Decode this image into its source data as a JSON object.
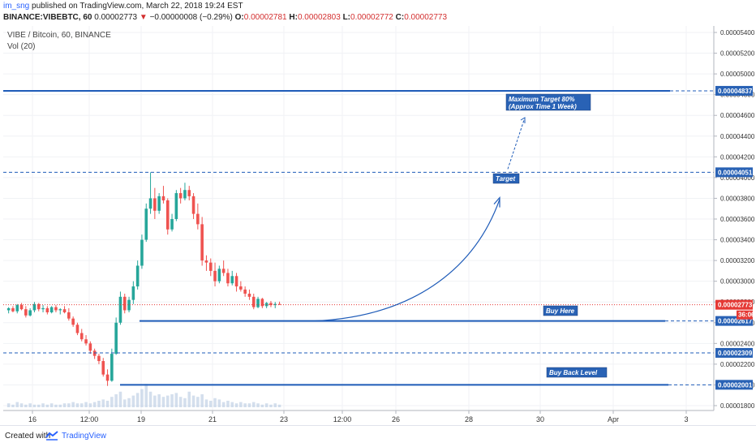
{
  "header": {
    "user": "im_sng",
    "published": " published on TradingView.com, March 22, 2018 19:24 EST",
    "symbol": "BINANCE:VIBEBTC, 60",
    "last": "0.00002773",
    "arrow": "▼",
    "change": "−0.00000008 (−0.29%)",
    "o_label": "O:",
    "o": "0.00002781",
    "h_label": "H:",
    "h": "0.00002803",
    "l_label": "L:",
    "l": "0.00002772",
    "c_label": "C:",
    "c": "0.00002773"
  },
  "legend": {
    "main": "VIBE / Bitcoin, 60, BINANCE",
    "vol": "Vol (20)"
  },
  "footer": {
    "created": "Created with",
    "brand": "TradingView"
  },
  "colors": {
    "up": "#26a69a",
    "down": "#ef5350",
    "line": "#1e5bb8",
    "label_bg": "#2962b5",
    "price_line": "#e53935",
    "grid": "#f0f2f5"
  },
  "chart_data": {
    "type": "candlestick",
    "y_ticks": [
      "0.00005400",
      "0.00005200",
      "0.00005000",
      "0.00004800",
      "0.00004600",
      "0.00004400",
      "0.00004200",
      "0.00004000",
      "0.00003800",
      "0.00003600",
      "0.00003400",
      "0.00003200",
      "0.00003000",
      "0.00002800",
      "0.00002600",
      "0.00002400",
      "0.00002200",
      "0.00002000",
      "0.00001800"
    ],
    "x_ticks": [
      "16",
      "12:00",
      "19",
      "21",
      "23",
      "12:00",
      "26",
      "28",
      "30",
      "Apr",
      "3"
    ],
    "price_labels": {
      "max_target": "0.00004837",
      "target": "0.00004051",
      "last": "0.00002773",
      "countdown": "36:06",
      "buy": "0.00002617",
      "mid": "0.00002309",
      "buy_back": "0.00002001"
    },
    "annotations": {
      "max_target_line1": "Maximum Target 80%",
      "max_target_line2": "(Approx Time 1 Week)",
      "target": "Target",
      "buy_here": "Buy Here",
      "buy_back": "Buy Back Level"
    },
    "candles": [
      [
        2.72e-05,
        2.75e-05,
        2.69e-05,
        2.74e-05
      ],
      [
        2.74e-05,
        2.76e-05,
        2.7e-05,
        2.71e-05
      ],
      [
        2.71e-05,
        2.78e-05,
        2.69e-05,
        2.77e-05
      ],
      [
        2.77e-05,
        2.79e-05,
        2.72e-05,
        2.73e-05
      ],
      [
        2.73e-05,
        2.76e-05,
        2.65e-05,
        2.67e-05
      ],
      [
        2.67e-05,
        2.74e-05,
        2.66e-05,
        2.72e-05
      ],
      [
        2.72e-05,
        2.8e-05,
        2.7e-05,
        2.78e-05
      ],
      [
        2.78e-05,
        2.79e-05,
        2.71e-05,
        2.73e-05
      ],
      [
        2.73e-05,
        2.77e-05,
        2.7e-05,
        2.74e-05
      ],
      [
        2.74e-05,
        2.76e-05,
        2.68e-05,
        2.7e-05
      ],
      [
        2.7e-05,
        2.76e-05,
        2.69e-05,
        2.75e-05
      ],
      [
        2.75e-05,
        2.77e-05,
        2.7e-05,
        2.72e-05
      ],
      [
        2.72e-05,
        2.74e-05,
        2.68e-05,
        2.73e-05
      ],
      [
        2.73e-05,
        2.76e-05,
        2.69e-05,
        2.7e-05
      ],
      [
        2.7e-05,
        2.74e-05,
        2.62e-05,
        2.64e-05
      ],
      [
        2.64e-05,
        2.66e-05,
        2.56e-05,
        2.58e-05
      ],
      [
        2.58e-05,
        2.6e-05,
        2.48e-05,
        2.5e-05
      ],
      [
        2.5e-05,
        2.54e-05,
        2.42e-05,
        2.44e-05
      ],
      [
        2.44e-05,
        2.48e-05,
        2.38e-05,
        2.4e-05
      ],
      [
        2.4e-05,
        2.42e-05,
        2.3e-05,
        2.33e-05
      ],
      [
        2.33e-05,
        2.35e-05,
        2.25e-05,
        2.28e-05
      ],
      [
        2.28e-05,
        2.3e-05,
        2.2e-05,
        2.23e-05
      ],
      [
        2.23e-05,
        2.26e-05,
        2.08e-05,
        2.1e-05
      ],
      [
        2.1e-05,
        2.15e-05,
        1.99e-05,
        2.04e-05
      ],
      [
        2.04e-05,
        2.35e-05,
        2.03e-05,
        2.3e-05
      ],
      [
        2.3e-05,
        2.65e-05,
        2.29e-05,
        2.6e-05
      ],
      [
        2.6e-05,
        2.9e-05,
        2.58e-05,
        2.85e-05
      ],
      [
        2.85e-05,
        2.88e-05,
        2.69e-05,
        2.72e-05
      ],
      [
        2.72e-05,
        2.85e-05,
        2.7e-05,
        2.82e-05
      ],
      [
        2.82e-05,
        3e-05,
        2.78e-05,
        2.95e-05
      ],
      [
        2.95e-05,
        3.2e-05,
        2.92e-05,
        3.15e-05
      ],
      [
        3.15e-05,
        3.45e-05,
        3.12e-05,
        3.4e-05
      ],
      [
        3.4e-05,
        3.75e-05,
        3.38e-05,
        3.7e-05
      ],
      [
        3.7e-05,
        4.05e-05,
        3.65e-05,
        3.8e-05
      ],
      [
        3.8e-05,
        3.9e-05,
        3.6e-05,
        3.68e-05
      ],
      [
        3.68e-05,
        3.85e-05,
        3.65e-05,
        3.82e-05
      ],
      [
        3.82e-05,
        3.92e-05,
        3.75e-05,
        3.78e-05
      ],
      [
        3.78e-05,
        3.8e-05,
        3.45e-05,
        3.5e-05
      ],
      [
        3.5e-05,
        3.65e-05,
        3.48e-05,
        3.6e-05
      ],
      [
        3.6e-05,
        3.88e-05,
        3.58e-05,
        3.85e-05
      ],
      [
        3.85e-05,
        3.9e-05,
        3.75e-05,
        3.8e-05
      ],
      [
        3.8e-05,
        3.95e-05,
        3.78e-05,
        3.88e-05
      ],
      [
        3.88e-05,
        3.92e-05,
        3.78e-05,
        3.82e-05
      ],
      [
        3.82e-05,
        3.85e-05,
        3.6e-05,
        3.65e-05
      ],
      [
        3.65e-05,
        3.75e-05,
        3.5e-05,
        3.55e-05
      ],
      [
        3.55e-05,
        3.62e-05,
        3.15e-05,
        3.2e-05
      ],
      [
        3.2e-05,
        3.25e-05,
        3.1e-05,
        3.18e-05
      ],
      [
        3.18e-05,
        3.22e-05,
        3.05e-05,
        3.1e-05
      ],
      [
        3.1e-05,
        3.18e-05,
        2.95e-05,
        3e-05
      ],
      [
        3e-05,
        3.15e-05,
        2.98e-05,
        3.12e-05
      ],
      [
        3.12e-05,
        3.2e-05,
        3.05e-05,
        3.08e-05
      ],
      [
        3.08e-05,
        3.12e-05,
        2.95e-05,
        2.98e-05
      ],
      [
        2.98e-05,
        3.1e-05,
        2.96e-05,
        3.05e-05
      ],
      [
        3.05e-05,
        3.08e-05,
        2.9e-05,
        2.95e-05
      ],
      [
        2.95e-05,
        3e-05,
        2.9e-05,
        2.92e-05
      ],
      [
        2.92e-05,
        2.95e-05,
        2.85e-05,
        2.88e-05
      ],
      [
        2.88e-05,
        2.92e-05,
        2.82e-05,
        2.85e-05
      ],
      [
        2.85e-05,
        2.88e-05,
        2.73e-05,
        2.75e-05
      ],
      [
        2.75e-05,
        2.85e-05,
        2.74e-05,
        2.83e-05
      ],
      [
        2.83e-05,
        2.84e-05,
        2.74e-05,
        2.76e-05
      ],
      [
        2.76e-05,
        2.8e-05,
        2.74e-05,
        2.79e-05
      ],
      [
        2.79e-05,
        2.81e-05,
        2.75e-05,
        2.77e-05
      ],
      [
        2.77e-05,
        2.8e-05,
        2.74e-05,
        2.781e-05
      ],
      [
        2.781e-05,
        2.803e-05,
        2.772e-05,
        2.773e-05
      ]
    ],
    "volumes": [
      3,
      2,
      4,
      3,
      2,
      3,
      2,
      2,
      3,
      2,
      3,
      2,
      2,
      3,
      3,
      4,
      3,
      3,
      4,
      3,
      4,
      5,
      6,
      5,
      8,
      10,
      12,
      6,
      7,
      9,
      11,
      14,
      18,
      12,
      9,
      10,
      8,
      9,
      10,
      11,
      8,
      7,
      12,
      9,
      8,
      10,
      6,
      5,
      7,
      6,
      4,
      5,
      4,
      3,
      4,
      3,
      3,
      4,
      3,
      2,
      3,
      2,
      3,
      2
    ]
  }
}
